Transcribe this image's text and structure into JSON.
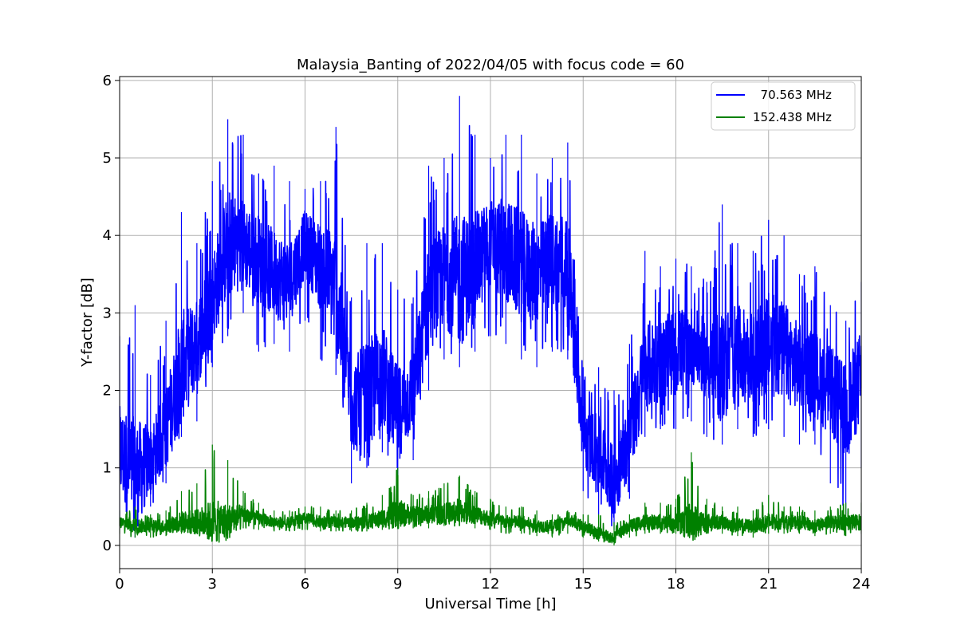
{
  "chart_data": {
    "type": "line",
    "title": "Malaysia_Banting of 2022/04/05 with focus code = 60",
    "xlabel": "Universal Time [h]",
    "ylabel": "Y-factor [dB]",
    "xlim": [
      0,
      24
    ],
    "ylim": [
      -0.3,
      6.05
    ],
    "xticks": [
      0,
      3,
      6,
      9,
      12,
      15,
      18,
      21,
      24
    ],
    "xtick_labels": [
      "0",
      "3",
      "6",
      "9",
      "12",
      "15",
      "18",
      "21",
      "24"
    ],
    "yticks": [
      0,
      1,
      2,
      3,
      4,
      5,
      6
    ],
    "ytick_labels": [
      "0",
      "1",
      "2",
      "3",
      "4",
      "5",
      "6"
    ],
    "grid": true,
    "legend_position": "top-right",
    "series": [
      {
        "name": "  70.563 MHz",
        "color": "#0000ff",
        "x": [
          0.0,
          0.5,
          1.0,
          1.5,
          2.0,
          2.5,
          3.0,
          3.5,
          4.0,
          4.5,
          5.0,
          5.5,
          6.0,
          6.5,
          7.0,
          7.5,
          8.0,
          8.5,
          9.0,
          9.5,
          10.0,
          10.5,
          11.0,
          11.5,
          12.0,
          12.5,
          13.0,
          13.5,
          14.0,
          14.5,
          15.0,
          15.5,
          16.0,
          16.5,
          17.0,
          17.5,
          18.0,
          18.5,
          19.0,
          19.5,
          20.0,
          20.5,
          21.0,
          21.5,
          22.0,
          22.5,
          23.0,
          23.5,
          24.0
        ],
        "y": [
          1.2,
          0.9,
          1.1,
          1.5,
          2.3,
          2.6,
          3.2,
          3.9,
          3.9,
          3.7,
          3.5,
          3.4,
          3.9,
          3.6,
          3.3,
          1.8,
          1.9,
          2.2,
          1.7,
          2.0,
          3.2,
          3.5,
          3.4,
          3.6,
          3.9,
          3.8,
          3.6,
          3.5,
          3.7,
          3.6,
          1.4,
          1.2,
          0.8,
          1.4,
          2.3,
          2.4,
          2.5,
          2.6,
          2.4,
          2.3,
          2.5,
          2.4,
          2.6,
          2.5,
          2.3,
          2.2,
          2.0,
          1.7,
          2.2
        ],
        "min": [
          0.3,
          0.1,
          0.5,
          0.8,
          1.4,
          1.6,
          2.3,
          2.7,
          3.0,
          2.5,
          2.6,
          2.5,
          2.9,
          2.4,
          2.2,
          0.8,
          1.0,
          1.2,
          0.9,
          1.1,
          2.0,
          2.4,
          2.3,
          2.5,
          2.7,
          2.6,
          2.4,
          2.3,
          2.5,
          2.4,
          0.7,
          0.4,
          0.2,
          0.6,
          1.4,
          1.5,
          1.5,
          1.6,
          1.4,
          1.3,
          1.5,
          1.4,
          1.5,
          1.4,
          1.3,
          1.3,
          0.8,
          0.4,
          1.0
        ],
        "max": [
          2.7,
          3.1,
          2.2,
          2.9,
          4.3,
          3.9,
          4.7,
          5.5,
          5.3,
          4.8,
          4.9,
          4.7,
          4.6,
          4.7,
          5.4,
          3.2,
          3.9,
          3.9,
          3.3,
          3.2,
          4.9,
          5.0,
          5.8,
          5.3,
          5.0,
          5.3,
          5.3,
          4.8,
          5.0,
          5.2,
          2.3,
          2.3,
          2.0,
          2.6,
          3.8,
          3.6,
          3.7,
          3.6,
          3.4,
          4.4,
          3.9,
          3.8,
          4.2,
          4.0,
          3.5,
          3.6,
          3.1,
          2.9,
          3.4
        ]
      },
      {
        "name": "152.438 MHz",
        "color": "#008000",
        "x": [
          0.0,
          0.5,
          1.0,
          1.5,
          2.0,
          2.5,
          3.0,
          3.5,
          4.0,
          4.5,
          5.0,
          5.5,
          6.0,
          6.5,
          7.0,
          7.5,
          8.0,
          8.5,
          9.0,
          9.5,
          10.0,
          10.5,
          11.0,
          11.5,
          12.0,
          12.5,
          13.0,
          13.5,
          14.0,
          14.5,
          15.0,
          15.5,
          16.0,
          16.5,
          17.0,
          17.5,
          18.0,
          18.5,
          19.0,
          19.5,
          20.0,
          20.5,
          21.0,
          21.5,
          22.0,
          22.5,
          23.0,
          23.5,
          24.0
        ],
        "y": [
          0.3,
          0.25,
          0.25,
          0.25,
          0.3,
          0.3,
          0.3,
          0.3,
          0.4,
          0.35,
          0.3,
          0.3,
          0.35,
          0.3,
          0.3,
          0.3,
          0.3,
          0.35,
          0.4,
          0.4,
          0.4,
          0.4,
          0.45,
          0.4,
          0.35,
          0.3,
          0.3,
          0.25,
          0.25,
          0.3,
          0.25,
          0.15,
          0.1,
          0.25,
          0.3,
          0.3,
          0.3,
          0.3,
          0.3,
          0.3,
          0.25,
          0.25,
          0.3,
          0.3,
          0.3,
          0.25,
          0.3,
          0.3,
          0.3
        ],
        "min": [
          0.15,
          0.1,
          0.1,
          0.12,
          0.15,
          0.15,
          0.15,
          0.15,
          0.22,
          0.2,
          0.18,
          0.18,
          0.2,
          0.18,
          0.18,
          0.18,
          0.18,
          0.2,
          0.22,
          0.22,
          0.22,
          0.25,
          0.25,
          0.22,
          0.2,
          0.15,
          0.15,
          0.12,
          0.1,
          0.15,
          0.1,
          0.05,
          0.0,
          0.1,
          0.15,
          0.15,
          0.15,
          0.15,
          0.15,
          0.15,
          0.12,
          0.1,
          0.15,
          0.15,
          0.15,
          0.12,
          0.15,
          0.12,
          0.15
        ],
        "max": [
          0.45,
          0.5,
          0.4,
          0.45,
          0.7,
          0.8,
          1.3,
          1.1,
          0.7,
          0.55,
          0.45,
          0.45,
          0.5,
          0.5,
          0.45,
          0.45,
          0.55,
          0.65,
          1.0,
          0.65,
          0.7,
          0.8,
          0.9,
          0.7,
          0.6,
          0.5,
          0.5,
          0.45,
          0.4,
          0.45,
          0.4,
          0.4,
          0.3,
          0.4,
          0.55,
          0.55,
          0.6,
          1.2,
          0.6,
          0.5,
          0.5,
          0.45,
          0.65,
          0.5,
          0.5,
          0.45,
          0.5,
          0.55,
          0.55
        ]
      }
    ]
  }
}
